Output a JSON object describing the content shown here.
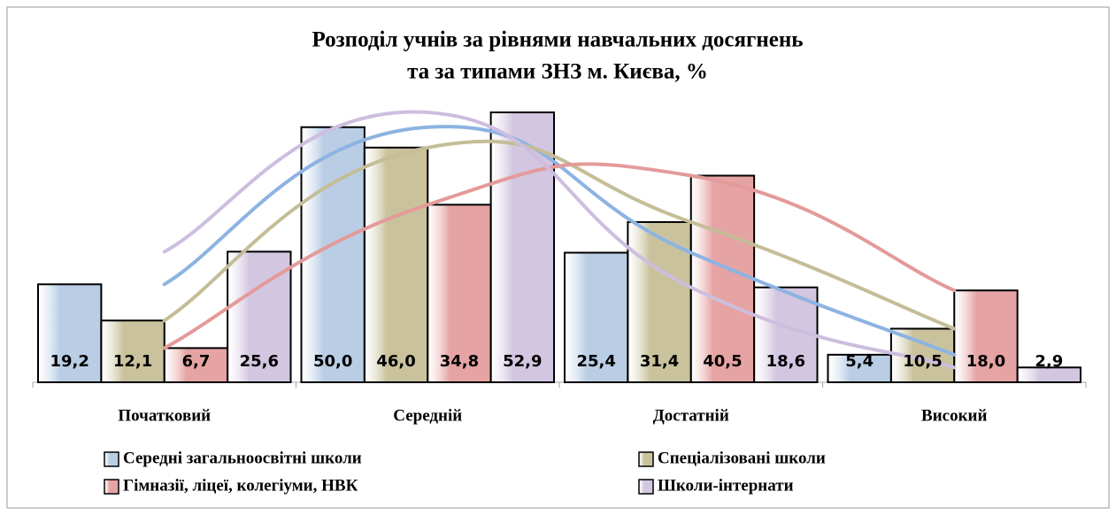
{
  "chart_data": {
    "type": "bar",
    "title": [
      "Розподіл учнів за рівнями навчальних досягнень",
      "та за типами ЗНЗ м. Києва, %"
    ],
    "categories": [
      "Початковий",
      "Середній",
      "Достатній",
      "Високий"
    ],
    "smooth_lines": true,
    "series": [
      {
        "name": "Середні загальноосвітні школи",
        "color": "#b9cde5",
        "line_color": "#8db3e2",
        "values": [
          19.2,
          50.0,
          25.4,
          5.4
        ],
        "value_labels": [
          "19,2",
          "50,0",
          "25,4",
          "5,4"
        ]
      },
      {
        "name": "Спеціалізовані школи",
        "color": "#c9c29c",
        "line_color": "#c4bd97",
        "values": [
          12.1,
          46.0,
          31.4,
          10.5
        ],
        "value_labels": [
          "12,1",
          "46,0",
          "31,4",
          "10,5"
        ]
      },
      {
        "name": "Гімназії, ліцеї, колегіуми, НВК",
        "color": "#e6a3a3",
        "line_color": "#e49a9a",
        "values": [
          6.7,
          34.8,
          40.5,
          18.0
        ],
        "value_labels": [
          "6,7",
          "34,8",
          "40,5",
          "18,0"
        ]
      },
      {
        "name": "Школи-інтернати",
        "color": "#d2c6e0",
        "line_color": "#cdbedf",
        "values": [
          25.6,
          52.9,
          18.6,
          2.9
        ],
        "value_labels": [
          "25,6",
          "52,9",
          "18,6",
          "2,9"
        ]
      }
    ]
  }
}
